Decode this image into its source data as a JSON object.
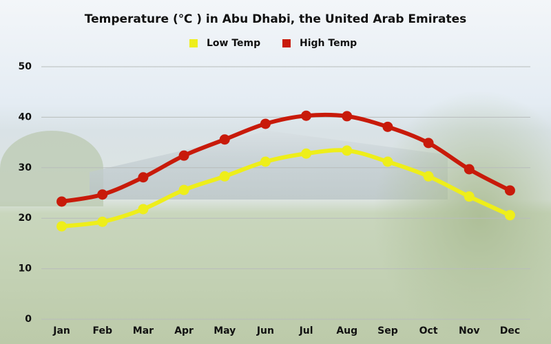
{
  "chart_data": {
    "type": "line",
    "title": "Temperature (℃ ) in Abu Dhabi, the United Arab Emirates",
    "categories": [
      "Jan",
      "Feb",
      "Mar",
      "Apr",
      "May",
      "Jun",
      "Jul",
      "Aug",
      "Sep",
      "Oct",
      "Nov",
      "Dec"
    ],
    "series": [
      {
        "name": "Low Temp",
        "color": "#eeee1a",
        "values": [
          18.4,
          19.3,
          21.8,
          25.6,
          28.3,
          31.2,
          32.8,
          33.4,
          31.2,
          28.3,
          24.3,
          20.6
        ]
      },
      {
        "name": "High Temp",
        "color": "#c81a0a",
        "values": [
          23.3,
          24.7,
          28.1,
          32.4,
          35.6,
          38.7,
          40.3,
          40.2,
          38.1,
          34.9,
          29.7,
          25.5
        ]
      }
    ],
    "ylim": [
      0,
      50
    ],
    "yticks": [
      0,
      10,
      20,
      30,
      40,
      50
    ],
    "grid": true,
    "legend": "top"
  }
}
